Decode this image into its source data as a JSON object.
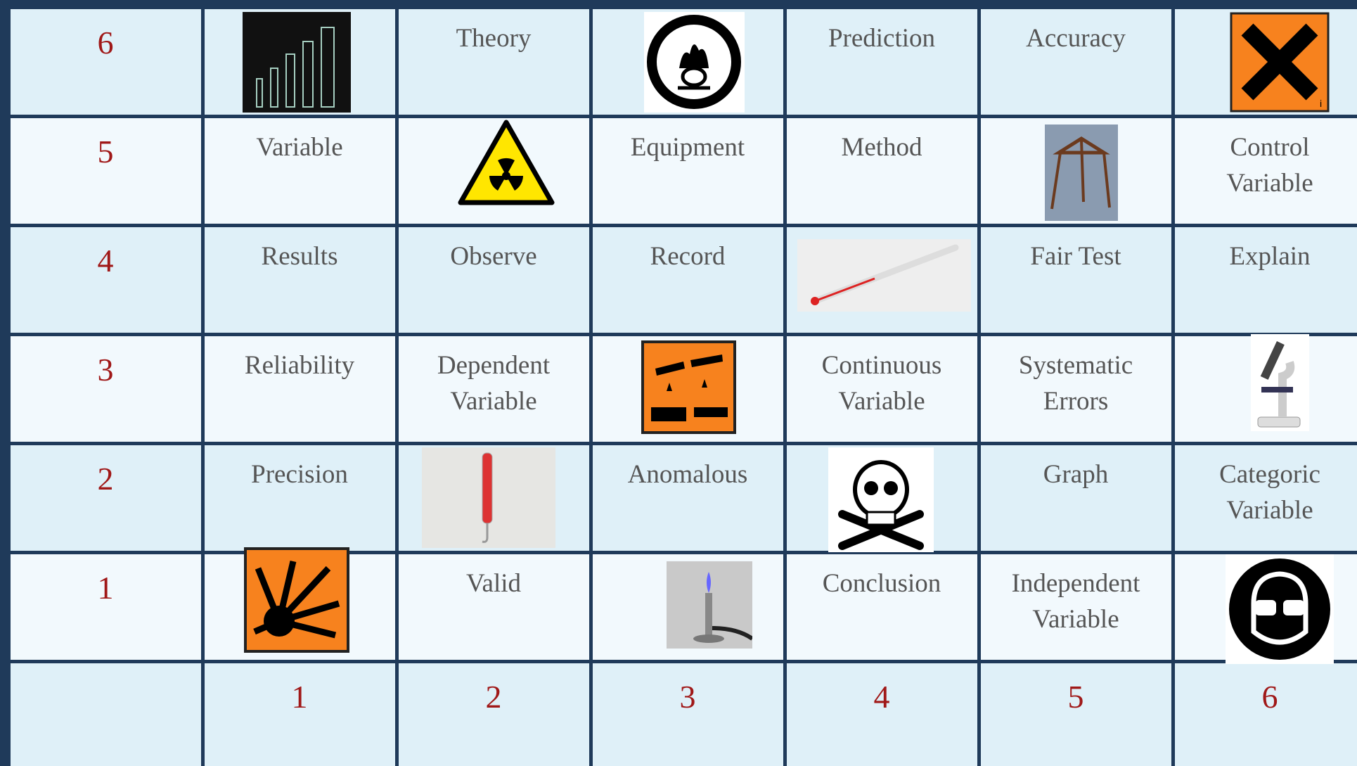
{
  "grid": {
    "row_labels": [
      6,
      5,
      4,
      3,
      2,
      1
    ],
    "rows": [
      [
        null,
        "Theory",
        null,
        "Prediction",
        "Accuracy",
        null
      ],
      [
        "Variable",
        null,
        "Equipment",
        "Method",
        null,
        "Control Variable"
      ],
      [
        "Results",
        "Observe",
        "Record",
        null,
        "Fair Test",
        "Explain"
      ],
      [
        "Reliability",
        "Dependent Variable",
        null,
        "Continuous Variable",
        "Systematic Errors",
        null
      ],
      [
        "Precision",
        null,
        "Anomalous",
        null,
        "Graph",
        "Categoric Variable"
      ],
      [
        null,
        "Valid",
        null,
        "Conclusion",
        "Independent Variable",
        null
      ]
    ],
    "column_labels": [
      1,
      2,
      3,
      4,
      5,
      6
    ]
  }
}
